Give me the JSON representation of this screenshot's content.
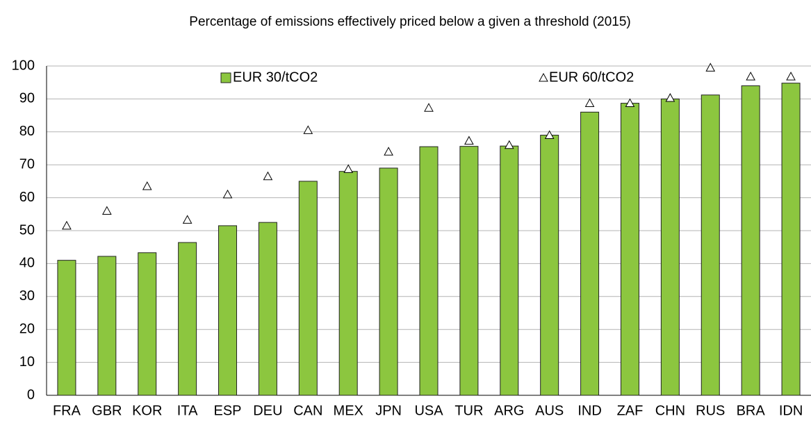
{
  "chart_data": {
    "type": "bar",
    "title": "Percentage of emissions effectively priced below a given a threshold (2015)",
    "categories": [
      "FRA",
      "GBR",
      "KOR",
      "ITA",
      "ESP",
      "DEU",
      "CAN",
      "MEX",
      "JPN",
      "USA",
      "TUR",
      "ARG",
      "AUS",
      "IND",
      "ZAF",
      "CHN",
      "RUS",
      "BRA",
      "IDN"
    ],
    "series": [
      {
        "name": "EUR 30/tCO2",
        "type": "bar",
        "color": "#8cc63f",
        "values": [
          41,
          42.2,
          43.3,
          46.4,
          51.5,
          52.5,
          65,
          68,
          69,
          75.5,
          75.6,
          75.7,
          79,
          86,
          88.7,
          90,
          91.2,
          94,
          94.8
        ]
      },
      {
        "name": "EUR 60/tCO2",
        "type": "scatter",
        "marker": "triangle",
        "color": "#ffffff",
        "values": [
          51.5,
          56,
          63.5,
          53.3,
          61,
          66.5,
          80.5,
          68.7,
          74,
          87.3,
          77.3,
          76,
          79,
          88.7,
          88.7,
          90.3,
          99.5,
          96.8,
          96.8
        ]
      }
    ],
    "ylim": [
      0,
      100
    ],
    "yticks": [
      0,
      10,
      20,
      30,
      40,
      50,
      60,
      70,
      80,
      90,
      100
    ],
    "grid": true
  }
}
